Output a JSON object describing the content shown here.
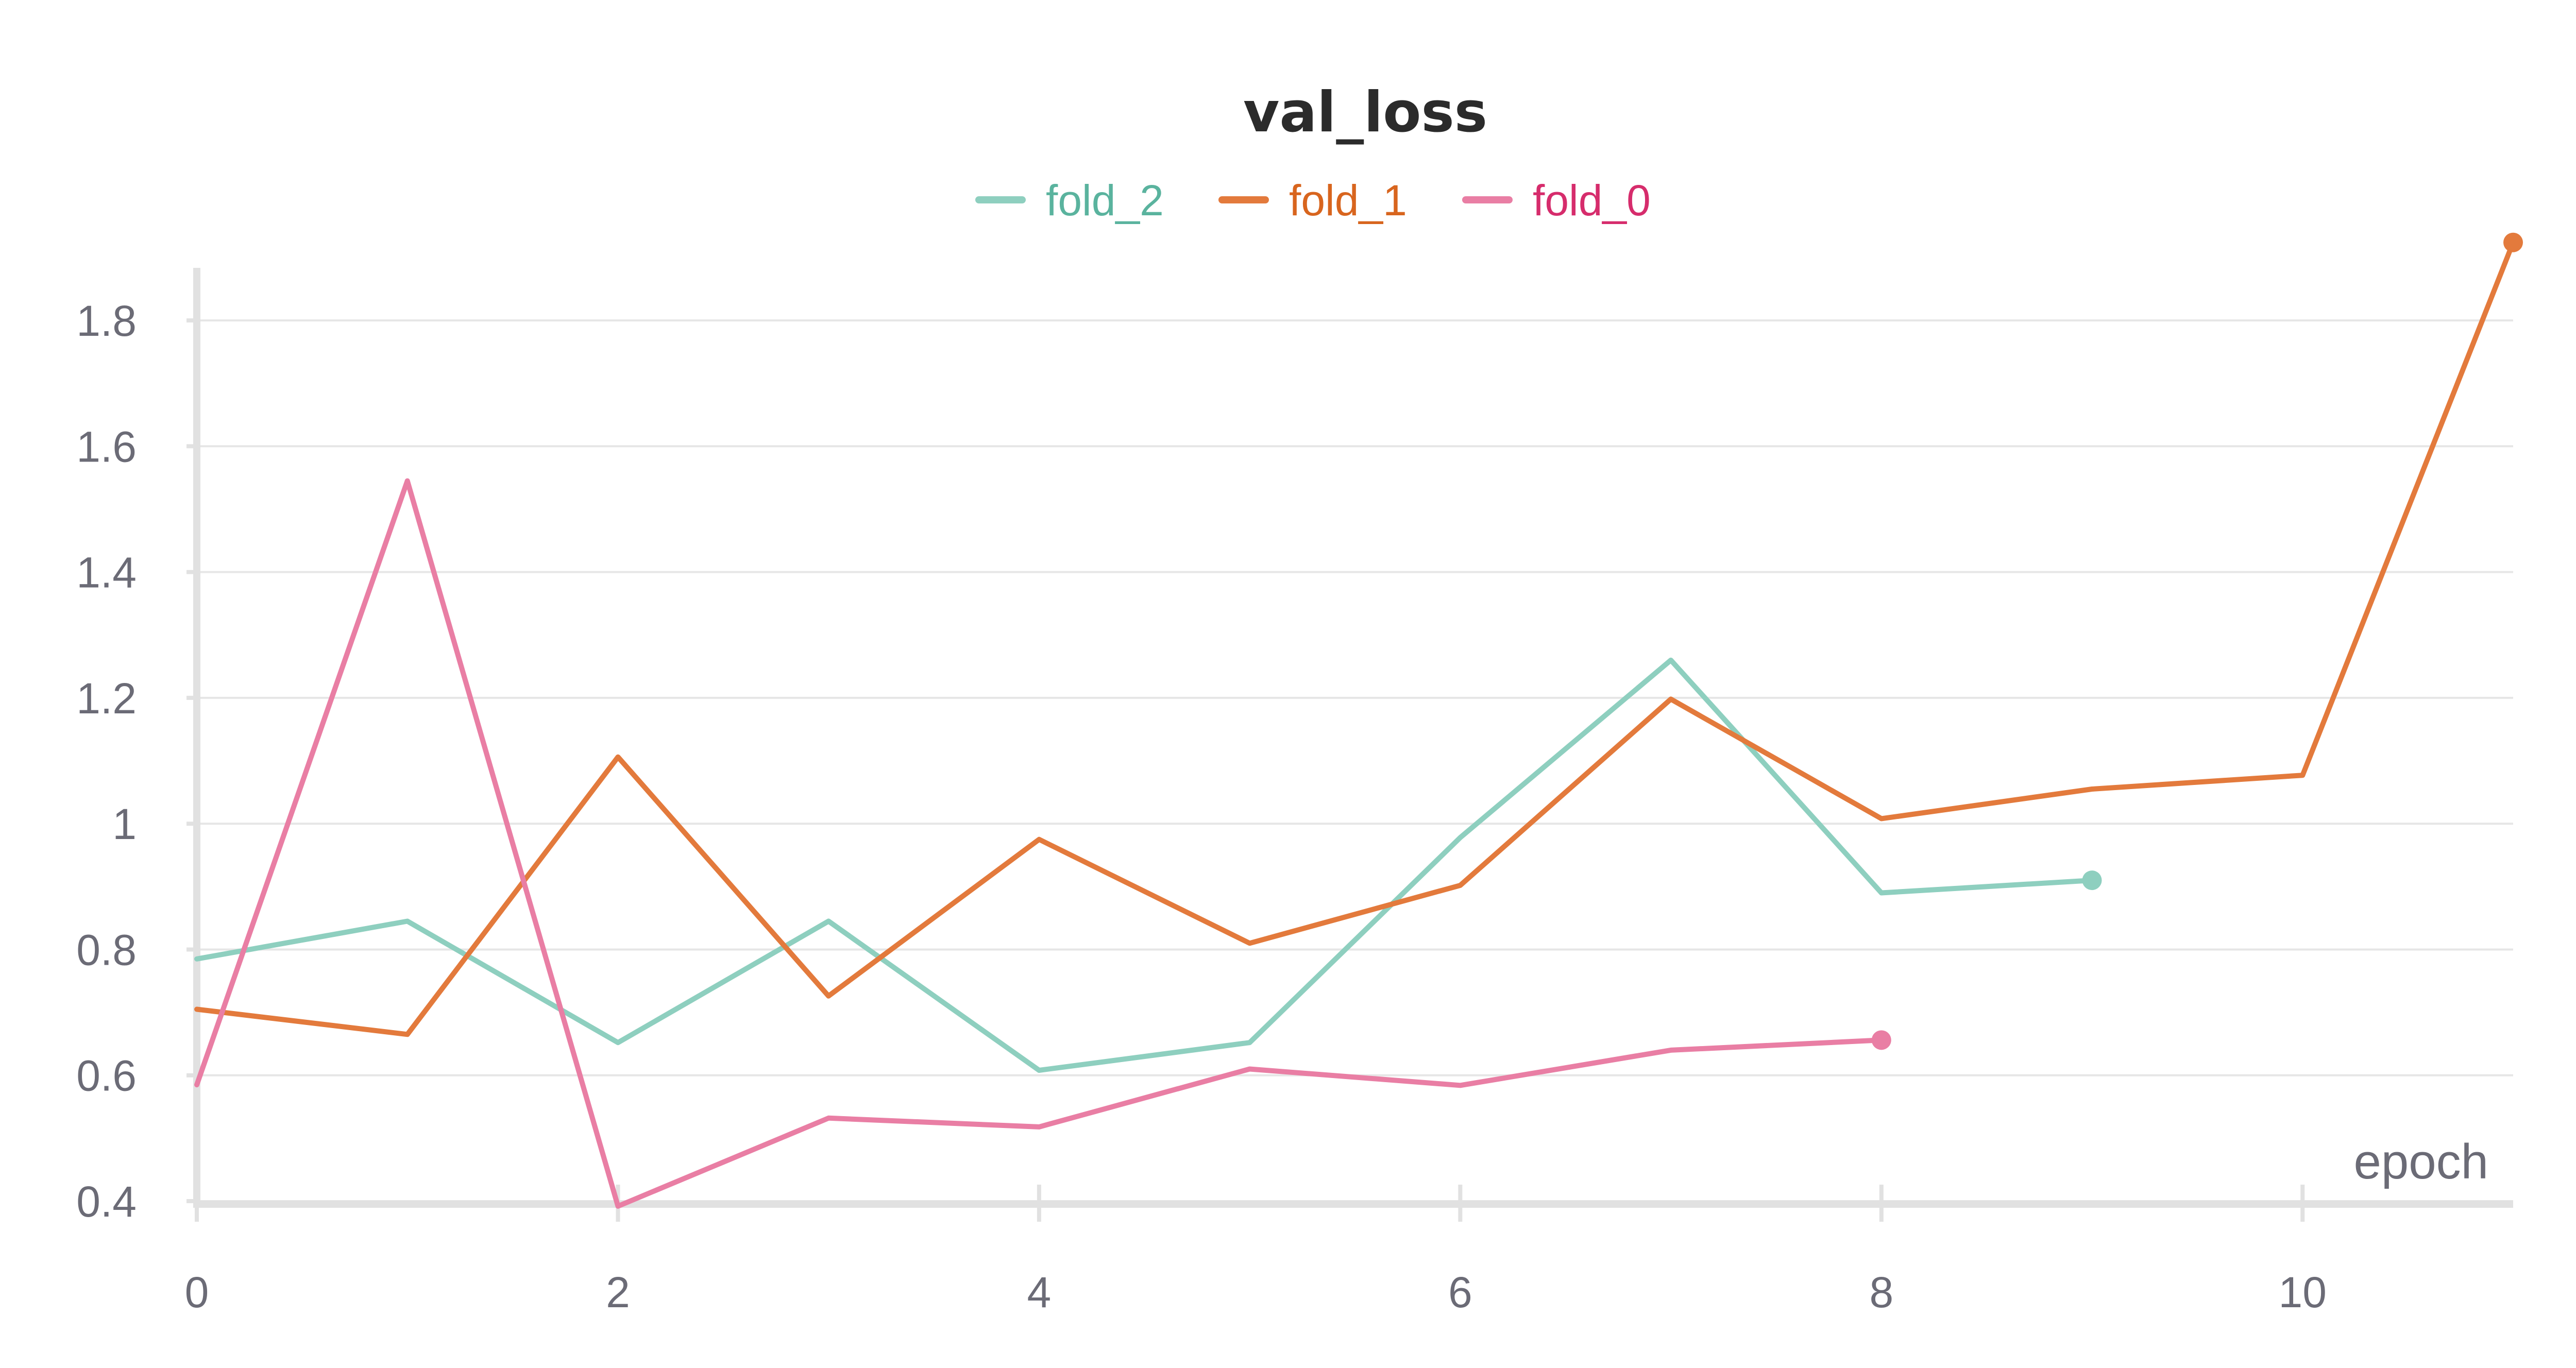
{
  "chart_data": {
    "type": "line",
    "title": "val_loss",
    "xlabel": "epoch",
    "ylabel": "",
    "xlim": [
      0,
      11
    ],
    "ylim": [
      0.4,
      1.9
    ],
    "x_ticks": [
      0,
      2,
      4,
      6,
      8,
      10
    ],
    "x_tick_labels": [
      "0",
      "2",
      "4",
      "6",
      "8",
      "10"
    ],
    "y_ticks": [
      0.4,
      0.6,
      0.8,
      1.0,
      1.2,
      1.4,
      1.6,
      1.8
    ],
    "y_tick_labels": [
      "0.4",
      "0.6",
      "0.8",
      "1",
      "1.2",
      "1.4",
      "1.6",
      "1.8"
    ],
    "grid": true,
    "legend_position": "top-center",
    "series": [
      {
        "name": "fold_2",
        "color": "#8ecfbf",
        "label_color": "#5ab39e",
        "x": [
          0,
          1,
          2,
          3,
          4,
          5,
          6,
          7,
          8,
          9
        ],
        "y": [
          0.785,
          0.845,
          0.652,
          0.845,
          0.608,
          0.652,
          0.978,
          1.26,
          0.89,
          0.91
        ]
      },
      {
        "name": "fold_1",
        "color": "#e37a3c",
        "label_color": "#d8651e",
        "x": [
          0,
          1,
          2,
          3,
          4,
          5,
          6,
          7,
          8,
          9,
          10,
          11
        ],
        "y": [
          0.705,
          0.665,
          1.106,
          0.726,
          0.975,
          0.81,
          0.902,
          1.198,
          1.008,
          1.055,
          1.077,
          1.924
        ]
      },
      {
        "name": "fold_0",
        "color": "#e97ea4",
        "label_color": "#d62c6c",
        "x": [
          0,
          1,
          2,
          3,
          4,
          5,
          6,
          7,
          8
        ],
        "y": [
          0.585,
          1.545,
          0.392,
          0.532,
          0.518,
          0.61,
          0.584,
          0.64,
          0.656
        ]
      }
    ]
  }
}
